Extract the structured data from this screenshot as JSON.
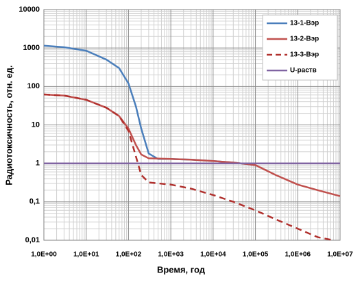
{
  "chart_data": {
    "type": "line",
    "xlabel": "Время, год",
    "ylabel": "Радиотоксичность, отн. ед.",
    "xscale": "log",
    "yscale": "log",
    "grid": true,
    "minor_grid": true,
    "legend": "upper right",
    "xlim": [
      1,
      10000000
    ],
    "ylim": [
      0.01,
      10000
    ],
    "xticks": [
      {
        "value": 1,
        "label": "1,0E+00"
      },
      {
        "value": 10,
        "label": "1,0E+01"
      },
      {
        "value": 100,
        "label": "1,0E+02"
      },
      {
        "value": 1000,
        "label": "1,0E+03"
      },
      {
        "value": 10000,
        "label": "1,0E+04"
      },
      {
        "value": 100000,
        "label": "1,0E+05"
      },
      {
        "value": 1000000,
        "label": "1,0E+06"
      },
      {
        "value": 10000000,
        "label": "1,0E+07"
      }
    ],
    "yticks": [
      {
        "value": 0.01,
        "label": "0,01"
      },
      {
        "value": 0.1,
        "label": "0,1"
      },
      1,
      10,
      100,
      1000,
      10000
    ],
    "series": [
      {
        "name": "13-1-Вэр",
        "color": "#4a7ebb",
        "x": [
          1,
          3,
          10,
          30,
          60,
          100,
          150,
          200,
          300,
          500,
          1000,
          3000,
          10000,
          30000,
          100000
        ],
        "values": [
          1150,
          1050,
          850,
          500,
          300,
          120,
          30,
          8,
          1.8,
          1.3,
          1.3,
          1.25,
          1.15,
          1.05,
          0.9
        ]
      },
      {
        "name": "13-2-Вэр",
        "color": "#c0504d",
        "x": [
          1,
          3,
          10,
          30,
          60,
          100,
          150,
          200,
          300,
          1000,
          3000,
          10000,
          30000,
          100000,
          300000,
          1000000,
          3000000,
          10000000
        ],
        "values": [
          62,
          58,
          45,
          28,
          17,
          8,
          3,
          1.7,
          1.35,
          1.3,
          1.25,
          1.15,
          1.05,
          0.9,
          0.5,
          0.28,
          0.2,
          0.14
        ]
      },
      {
        "name": "13-3-Вэр",
        "color": "#b0302d",
        "dash": true,
        "x": [
          1,
          3,
          10,
          30,
          60,
          100,
          150,
          200,
          300,
          1000,
          3000,
          10000,
          30000,
          100000,
          300000,
          1000000,
          3000000,
          7000000
        ],
        "values": [
          62,
          58,
          45,
          28,
          17,
          7,
          1.5,
          0.5,
          0.32,
          0.28,
          0.22,
          0.15,
          0.1,
          0.06,
          0.035,
          0.02,
          0.012,
          0.01
        ]
      },
      {
        "name": "U-раств",
        "color": "#8064a2",
        "x": [
          1,
          10000000
        ],
        "values": [
          1,
          1
        ]
      }
    ]
  }
}
